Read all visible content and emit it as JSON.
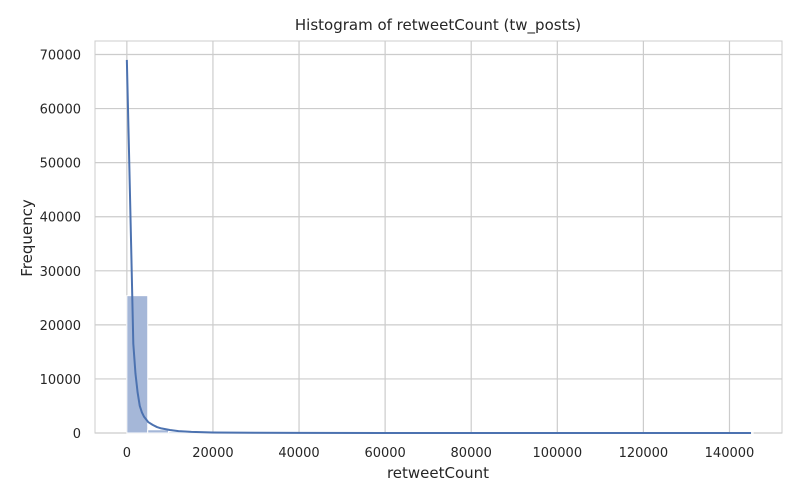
{
  "chart_data": {
    "type": "bar",
    "title": "Histogram of retweetCount (tw_posts)",
    "xlabel": "retweetCount",
    "ylabel": "Frequency",
    "xlim": [
      -7400,
      152200
    ],
    "ylim": [
      0,
      72500
    ],
    "xticks": [
      0,
      20000,
      40000,
      60000,
      80000,
      100000,
      120000,
      140000
    ],
    "yticks": [
      0,
      10000,
      20000,
      30000,
      40000,
      50000,
      60000,
      70000
    ],
    "grid": true,
    "bins": [
      {
        "x0": 0,
        "x1": 4850,
        "count": 25400
      },
      {
        "x0": 4850,
        "x1": 9700,
        "count": 600
      },
      {
        "x0": 9700,
        "x1": 14550,
        "count": 250
      },
      {
        "x0": 14550,
        "x1": 19400,
        "count": 120
      },
      {
        "x0": 19400,
        "x1": 24250,
        "count": 60
      },
      {
        "x0": 24250,
        "x1": 29100,
        "count": 30
      },
      {
        "x0": 29100,
        "x1": 33950,
        "count": 15
      },
      {
        "x0": 33950,
        "x1": 38800,
        "count": 10
      },
      {
        "x0": 38800,
        "x1": 43650,
        "count": 8
      },
      {
        "x0": 43650,
        "x1": 48500,
        "count": 5
      },
      {
        "x0": 48500,
        "x1": 53350,
        "count": 4
      },
      {
        "x0": 53350,
        "x1": 58200,
        "count": 3
      },
      {
        "x0": 58200,
        "x1": 63050,
        "count": 3
      },
      {
        "x0": 63050,
        "x1": 67900,
        "count": 2
      },
      {
        "x0": 67900,
        "x1": 72750,
        "count": 2
      },
      {
        "x0": 72750,
        "x1": 77600,
        "count": 1
      },
      {
        "x0": 77600,
        "x1": 82450,
        "count": 1
      },
      {
        "x0": 82450,
        "x1": 87300,
        "count": 1
      },
      {
        "x0": 87300,
        "x1": 92150,
        "count": 1
      },
      {
        "x0": 92150,
        "x1": 97000,
        "count": 1
      },
      {
        "x0": 97000,
        "x1": 101850,
        "count": 1
      },
      {
        "x0": 101850,
        "x1": 106700,
        "count": 0
      },
      {
        "x0": 106700,
        "x1": 111550,
        "count": 1
      },
      {
        "x0": 111550,
        "x1": 116400,
        "count": 0
      },
      {
        "x0": 116400,
        "x1": 121250,
        "count": 1
      },
      {
        "x0": 121250,
        "x1": 126100,
        "count": 0
      },
      {
        "x0": 126100,
        "x1": 130950,
        "count": 0
      },
      {
        "x0": 130950,
        "x1": 135800,
        "count": 1
      },
      {
        "x0": 135800,
        "x1": 140650,
        "count": 0
      },
      {
        "x0": 140650,
        "x1": 145500,
        "count": 1
      }
    ],
    "kde": {
      "x": [
        0,
        500,
        1000,
        1500,
        2000,
        2500,
        3000,
        3500,
        4000,
        5000,
        6000,
        7000,
        8000,
        10000,
        12000,
        15000,
        20000,
        30000,
        40000,
        60000,
        80000,
        100000,
        120000,
        145000
      ],
      "y": [
        69000,
        52000,
        34500,
        16500,
        11000,
        7500,
        5000,
        3800,
        3000,
        2000,
        1500,
        1100,
        850,
        550,
        350,
        200,
        100,
        40,
        20,
        8,
        4,
        2,
        1,
        0
      ]
    },
    "colors": {
      "bar_fill": "#a5b7d8",
      "bar_edge": "#ffffff",
      "kde_line": "#4c72b0",
      "grid": "#cccccc",
      "text": "#262626"
    }
  }
}
